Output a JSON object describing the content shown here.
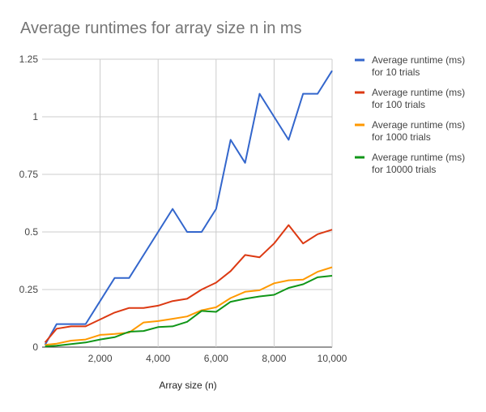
{
  "chart_data": {
    "type": "line",
    "title": "Average runtimes for array size n in ms",
    "xlabel": "Array size (n)",
    "ylabel": "",
    "xlim": [
      0,
      10000
    ],
    "ylim": [
      0,
      1.25
    ],
    "x_ticks": [
      {
        "value": 2000,
        "label": "2,000"
      },
      {
        "value": 4000,
        "label": "4,000"
      },
      {
        "value": 6000,
        "label": "6,000"
      },
      {
        "value": 8000,
        "label": "8,000"
      },
      {
        "value": 10000,
        "label": "10,000"
      }
    ],
    "y_ticks": [
      {
        "value": 0,
        "label": "0"
      },
      {
        "value": 0.25,
        "label": "0.25"
      },
      {
        "value": 0.5,
        "label": "0.5"
      },
      {
        "value": 0.75,
        "label": "0.75"
      },
      {
        "value": 1,
        "label": "1"
      },
      {
        "value": 1.25,
        "label": "1.25"
      }
    ],
    "grid": true,
    "legend_position": "right",
    "x": [
      100,
      500,
      1000,
      1500,
      2000,
      2500,
      3000,
      3500,
      4000,
      4500,
      5000,
      5500,
      6000,
      6500,
      7000,
      7500,
      8000,
      8500,
      9000,
      9500,
      10000
    ],
    "series": [
      {
        "name": "Average runtime (ms) for 10 trials",
        "legend_lines": [
          "Average runtime (ms)",
          "for 10 trials"
        ],
        "color": "#3366cc",
        "values": [
          0.01,
          0.1,
          0.1,
          0.1,
          0.2,
          0.3,
          0.3,
          0.4,
          0.5,
          0.6,
          0.5,
          0.5,
          0.6,
          0.9,
          0.8,
          1.1,
          1.0,
          0.9,
          1.1,
          1.1,
          1.2
        ]
      },
      {
        "name": "Average runtime (ms) for 100 trials",
        "legend_lines": [
          "Average runtime (ms)",
          "for 100 trials"
        ],
        "color": "#dc3912",
        "values": [
          0.02,
          0.08,
          0.09,
          0.09,
          0.12,
          0.15,
          0.17,
          0.17,
          0.18,
          0.2,
          0.21,
          0.25,
          0.28,
          0.33,
          0.4,
          0.39,
          0.45,
          0.53,
          0.45,
          0.49,
          0.51
        ]
      },
      {
        "name": "Average runtime (ms) for 1000 trials",
        "legend_lines": [
          "Average runtime (ms)",
          "for 1000 trials"
        ],
        "color": "#ff9900",
        "values": [
          0.01,
          0.015,
          0.028,
          0.033,
          0.053,
          0.057,
          0.063,
          0.107,
          0.113,
          0.123,
          0.133,
          0.16,
          0.173,
          0.213,
          0.24,
          0.247,
          0.277,
          0.29,
          0.293,
          0.327,
          0.347
        ]
      },
      {
        "name": "Average runtime (ms) for 10000 trials",
        "legend_lines": [
          "Average runtime (ms)",
          "for 10000 trials"
        ],
        "color": "#109618",
        "values": [
          0.003,
          0.006,
          0.013,
          0.02,
          0.033,
          0.043,
          0.067,
          0.07,
          0.087,
          0.09,
          0.11,
          0.157,
          0.153,
          0.197,
          0.21,
          0.22,
          0.227,
          0.257,
          0.273,
          0.303,
          0.31
        ]
      }
    ]
  }
}
